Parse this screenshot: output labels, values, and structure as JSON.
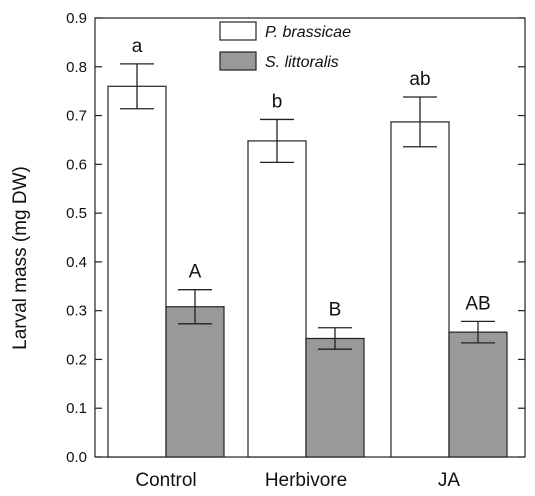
{
  "chart_data": {
    "type": "bar",
    "title": "",
    "xlabel": "",
    "ylabel": "Larval mass (mg DW)",
    "ylim": [
      0,
      0.9
    ],
    "yticks": [
      "0.0",
      "0.1",
      "0.2",
      "0.3",
      "0.4",
      "0.5",
      "0.6",
      "0.7",
      "0.8",
      "0.9"
    ],
    "categories": [
      "Control",
      "Herbivore",
      "JA"
    ],
    "grid": false,
    "legend_position": "top-center",
    "series": [
      {
        "name": "P. brassicae",
        "color": "#ffffff",
        "values": [
          0.76,
          0.648,
          0.687
        ],
        "errors": [
          0.046,
          0.044,
          0.051
        ],
        "significance": [
          "a",
          "b",
          "ab"
        ]
      },
      {
        "name": "S. littoralis",
        "color": "#999999",
        "values": [
          0.308,
          0.243,
          0.256
        ],
        "errors": [
          0.035,
          0.022,
          0.022
        ],
        "significance": [
          "A",
          "B",
          "AB"
        ]
      }
    ]
  }
}
